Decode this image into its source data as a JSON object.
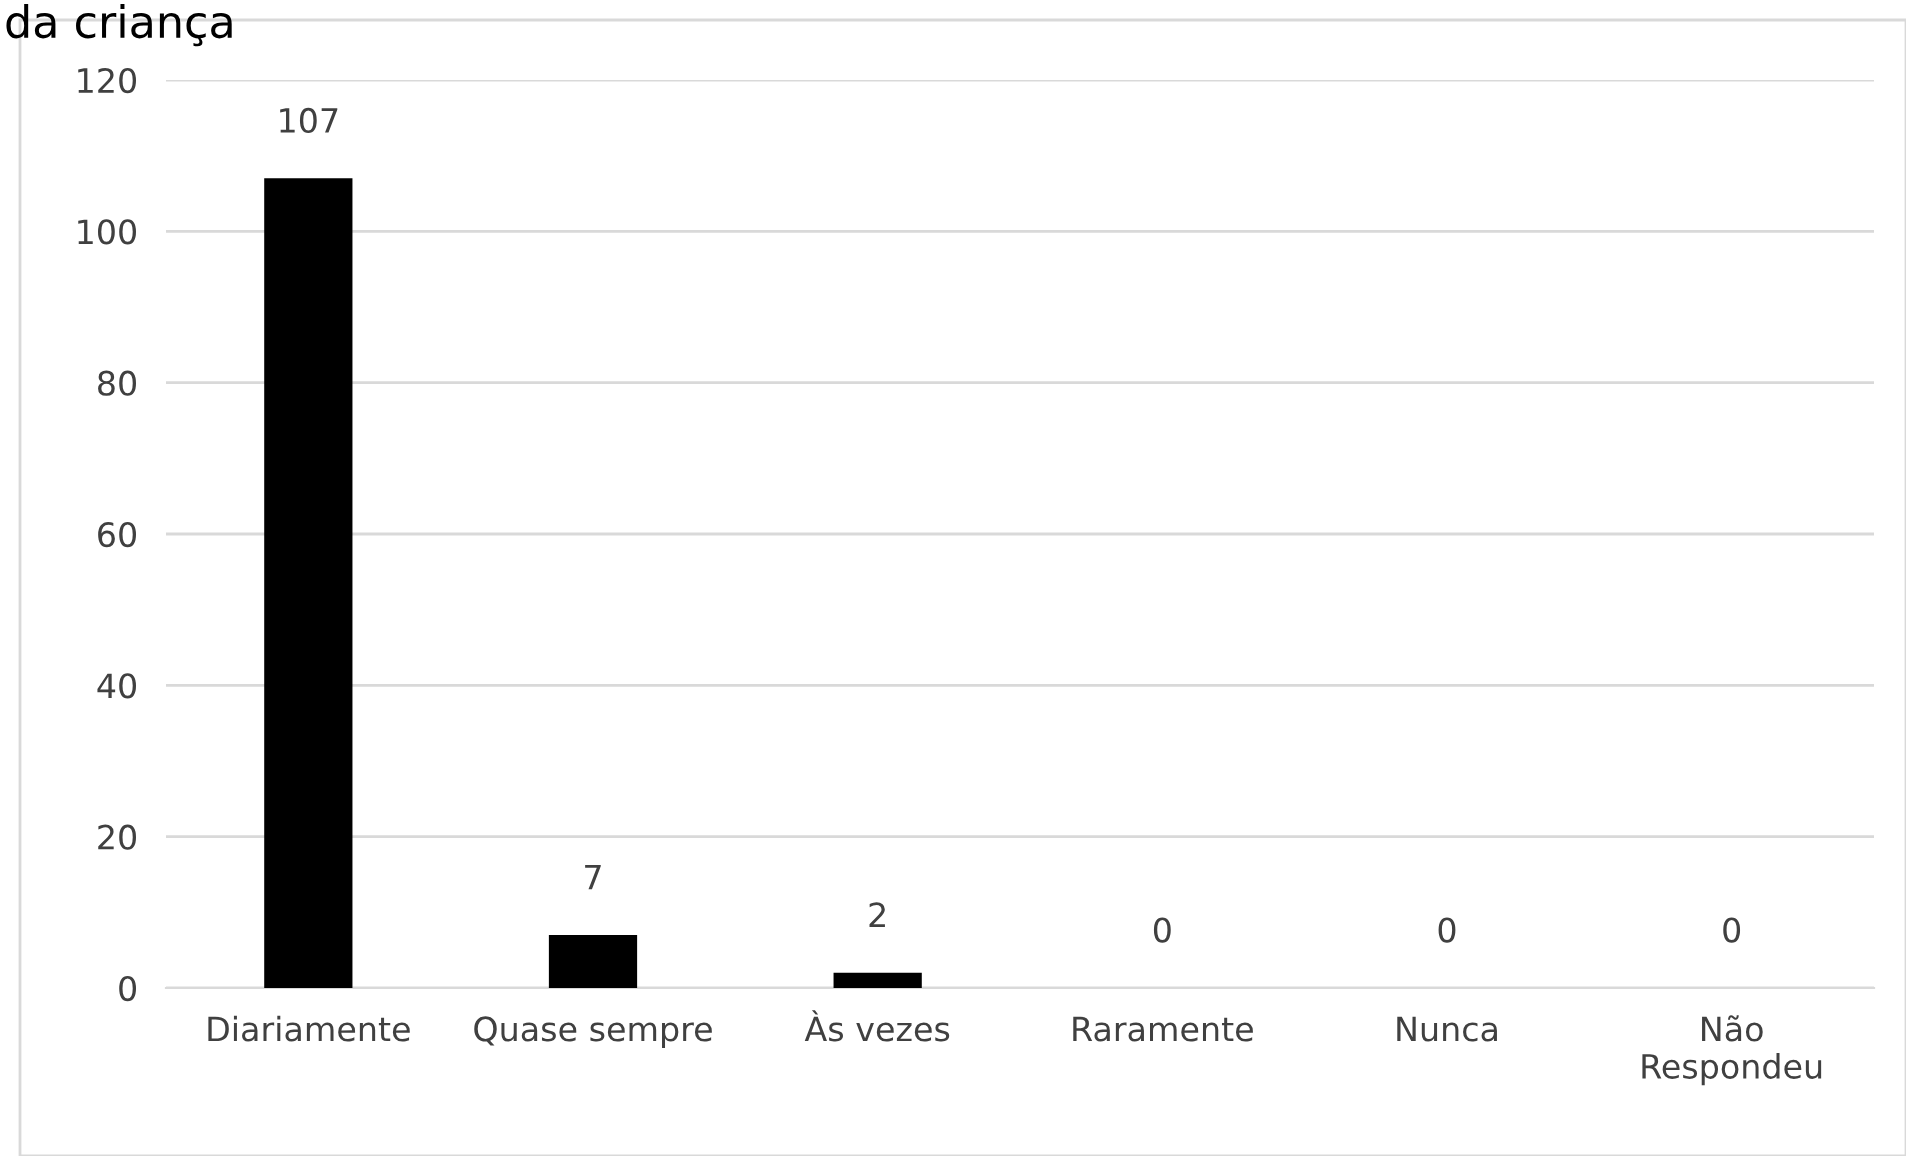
{
  "chart_data": {
    "type": "bar",
    "title": "da criança",
    "categories": [
      "Diariamente",
      "Quase sempre",
      "Às vezes",
      "Raramente",
      "Nunca",
      "Não\nRespondeu"
    ],
    "values": [
      107,
      7,
      2,
      0,
      0,
      0
    ],
    "color": "#000000",
    "ylim": [
      0,
      120
    ],
    "yticks": [
      0,
      20,
      40,
      60,
      80,
      100,
      120
    ],
    "grid": "y",
    "data_labels": true,
    "legend": false
  }
}
